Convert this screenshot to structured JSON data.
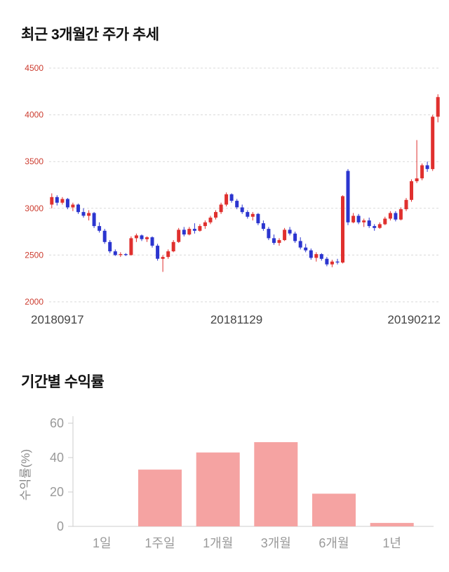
{
  "page": {
    "background": "#ffffff"
  },
  "chart_data": [
    {
      "type": "candlestick",
      "title": "최근 3개월간 주가 추세",
      "ylim": [
        2000,
        4500
      ],
      "y_ticks": [
        2000,
        2500,
        3000,
        3500,
        4000,
        4500
      ],
      "x_labels": [
        "20180917",
        "20181129",
        "20190212"
      ],
      "up_color": "#e0302e",
      "down_color": "#2b35cf",
      "grid_color": "#d9d9d9",
      "y_tick_color": "#cc3b2e",
      "x_label_color": "#444444",
      "candles": [
        [
          3040,
          3160,
          3000,
          3120
        ],
        [
          3120,
          3140,
          3030,
          3060
        ],
        [
          3060,
          3120,
          3040,
          3100
        ],
        [
          3100,
          3110,
          2990,
          3010
        ],
        [
          3010,
          3060,
          2970,
          3040
        ],
        [
          3040,
          3050,
          2940,
          2960
        ],
        [
          2960,
          3000,
          2900,
          2920
        ],
        [
          2920,
          2980,
          2870,
          2950
        ],
        [
          2950,
          2960,
          2790,
          2810
        ],
        [
          2810,
          2850,
          2740,
          2760
        ],
        [
          2760,
          2780,
          2620,
          2640
        ],
        [
          2640,
          2660,
          2520,
          2540
        ],
        [
          2540,
          2560,
          2490,
          2500
        ],
        [
          2500,
          2530,
          2480,
          2510
        ],
        [
          2510,
          2520,
          2490,
          2500
        ],
        [
          2500,
          2700,
          2495,
          2680
        ],
        [
          2680,
          2730,
          2640,
          2710
        ],
        [
          2710,
          2720,
          2650,
          2670
        ],
        [
          2670,
          2700,
          2640,
          2690
        ],
        [
          2690,
          2700,
          2580,
          2600
        ],
        [
          2600,
          2620,
          2440,
          2460
        ],
        [
          2460,
          2500,
          2320,
          2480
        ],
        [
          2480,
          2560,
          2460,
          2540
        ],
        [
          2540,
          2660,
          2530,
          2640
        ],
        [
          2640,
          2790,
          2630,
          2770
        ],
        [
          2770,
          2800,
          2700,
          2720
        ],
        [
          2720,
          2800,
          2710,
          2780
        ],
        [
          2780,
          2840,
          2730,
          2760
        ],
        [
          2760,
          2830,
          2750,
          2810
        ],
        [
          2810,
          2870,
          2780,
          2850
        ],
        [
          2850,
          2920,
          2830,
          2900
        ],
        [
          2900,
          2980,
          2880,
          2960
        ],
        [
          2960,
          3060,
          2940,
          3040
        ],
        [
          3040,
          3170,
          3020,
          3150
        ],
        [
          3150,
          3160,
          3060,
          3080
        ],
        [
          3080,
          3100,
          2990,
          3010
        ],
        [
          3010,
          3040,
          2940,
          2960
        ],
        [
          2960,
          2980,
          2890,
          2910
        ],
        [
          2910,
          2960,
          2870,
          2940
        ],
        [
          2940,
          2950,
          2820,
          2840
        ],
        [
          2840,
          2870,
          2760,
          2780
        ],
        [
          2780,
          2800,
          2660,
          2680
        ],
        [
          2680,
          2720,
          2610,
          2630
        ],
        [
          2630,
          2680,
          2600,
          2660
        ],
        [
          2660,
          2790,
          2650,
          2770
        ],
        [
          2770,
          2800,
          2710,
          2730
        ],
        [
          2730,
          2750,
          2630,
          2650
        ],
        [
          2650,
          2690,
          2560,
          2580
        ],
        [
          2580,
          2620,
          2530,
          2550
        ],
        [
          2550,
          2570,
          2450,
          2470
        ],
        [
          2470,
          2530,
          2430,
          2510
        ],
        [
          2510,
          2520,
          2440,
          2460
        ],
        [
          2460,
          2480,
          2380,
          2400
        ],
        [
          2400,
          2450,
          2370,
          2430
        ],
        [
          2430,
          2460,
          2400,
          2420
        ],
        [
          2420,
          3140,
          2410,
          3130
        ],
        [
          3400,
          3420,
          2820,
          2850
        ],
        [
          2850,
          2950,
          2840,
          2920
        ],
        [
          2920,
          2940,
          2830,
          2850
        ],
        [
          2850,
          2890,
          2800,
          2870
        ],
        [
          2870,
          2900,
          2790,
          2810
        ],
        [
          2810,
          2830,
          2760,
          2790
        ],
        [
          2790,
          2850,
          2780,
          2830
        ],
        [
          2830,
          2910,
          2820,
          2890
        ],
        [
          2890,
          2970,
          2870,
          2950
        ],
        [
          2950,
          2970,
          2860,
          2880
        ],
        [
          2880,
          3010,
          2870,
          2990
        ],
        [
          2990,
          3110,
          2970,
          3090
        ],
        [
          3090,
          3310,
          3070,
          3290
        ],
        [
          3290,
          3730,
          3270,
          3320
        ],
        [
          3320,
          3480,
          3300,
          3460
        ],
        [
          3460,
          3500,
          3390,
          3420
        ],
        [
          3420,
          4000,
          3400,
          3980
        ],
        [
          3980,
          4220,
          3920,
          4190
        ]
      ]
    },
    {
      "type": "bar",
      "title": "기간별 수익률",
      "ylabel": "수익률(%)",
      "categories": [
        "1일",
        "1주일",
        "1개월",
        "3개월",
        "6개월",
        "1년"
      ],
      "values": [
        0,
        33,
        43,
        49,
        19,
        2
      ],
      "ylim": [
        0,
        60
      ],
      "y_ticks": [
        0,
        20,
        40,
        60
      ],
      "bar_color": "#f5a3a2",
      "axis_color": "#cccccc",
      "label_color": "#999999",
      "ylabel_color": "#8a8a8a"
    }
  ]
}
